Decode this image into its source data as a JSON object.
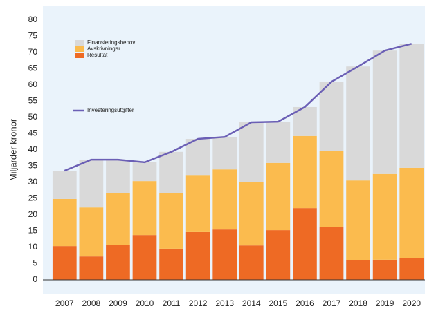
{
  "chart_data": {
    "type": "bar",
    "stacked": true,
    "ylabel": "Miljarder kronor",
    "categories": [
      "2007",
      "2008",
      "2009",
      "2010",
      "2011",
      "2012",
      "2013",
      "2014",
      "2015",
      "2016",
      "2017",
      "2018",
      "2019",
      "2020"
    ],
    "series": [
      {
        "name": "Resultat",
        "type": "bar",
        "color": "#ee6a24",
        "values": [
          10.4,
          7.2,
          10.8,
          13.8,
          9.6,
          14.7,
          15.5,
          10.6,
          15.3,
          22.1,
          16.2,
          6.0,
          6.2,
          6.6
        ]
      },
      {
        "name": "Avskrivningar",
        "type": "bar",
        "color": "#fbbb4e",
        "values": [
          14.5,
          15.1,
          15.8,
          16.6,
          17.0,
          17.6,
          18.5,
          19.4,
          20.7,
          22.2,
          23.4,
          24.6,
          26.4,
          27.9
        ]
      },
      {
        "name": "Finansieringsbehov",
        "type": "bar",
        "color": "#d9d9d9",
        "values": [
          8.7,
          14.7,
          10.4,
          5.8,
          12.8,
          11.1,
          10.0,
          18.5,
          12.7,
          8.9,
          21.4,
          35.1,
          38.0,
          38.2
        ]
      },
      {
        "name": "Investeringsutgifter",
        "type": "line",
        "color": "#6b5fb5",
        "values": [
          33.6,
          37.0,
          37.0,
          36.2,
          39.4,
          43.4,
          44.0,
          48.5,
          48.7,
          53.2,
          61.0,
          65.7,
          70.6,
          72.7
        ]
      }
    ],
    "ylim": [
      0,
      80
    ],
    "yticks": [
      0,
      5,
      10,
      15,
      20,
      25,
      30,
      35,
      40,
      45,
      50,
      55,
      60,
      65,
      70,
      75,
      80
    ]
  }
}
